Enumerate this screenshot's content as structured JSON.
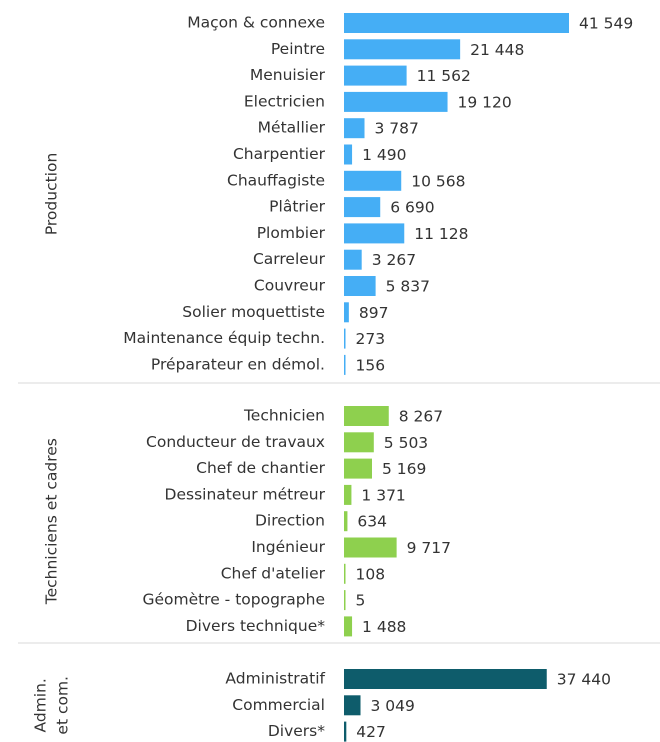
{
  "chart_data": {
    "type": "bar",
    "orientation": "horizontal",
    "groups": [
      {
        "name": [
          "Production"
        ],
        "color": "#45aef5",
        "categories": [
          "Maçon & connexe",
          "Peintre",
          "Menuisier",
          "Electricien",
          "Métallier",
          "Charpentier",
          "Chauffagiste",
          "Plâtrier",
          "Plombier",
          "Carreleur",
          "Couvreur",
          "Solier moquettiste",
          "Maintenance équip techn.",
          "Préparateur en démol."
        ],
        "values": [
          41549,
          21448,
          11562,
          19120,
          3787,
          1490,
          10568,
          6690,
          11128,
          3267,
          5837,
          897,
          273,
          156
        ],
        "value_labels": [
          "41 549",
          "21 448",
          "11 562",
          "19 120",
          "3 787",
          "1 490",
          "10 568",
          "6 690",
          "11 128",
          "3 267",
          "5 837",
          "897",
          "273",
          "156"
        ]
      },
      {
        "name": [
          "Techniciens et cadres"
        ],
        "color": "#8ed04e",
        "categories": [
          "Technicien",
          "Conducteur de travaux",
          "Chef de chantier",
          "Dessinateur métreur",
          "Direction",
          "Ingénieur",
          "Chef d'atelier",
          "Géomètre - topographe",
          "Divers technique*"
        ],
        "values": [
          8267,
          5503,
          5169,
          1371,
          634,
          9717,
          108,
          5,
          1488
        ],
        "value_labels": [
          "8 267",
          "5 503",
          "5 169",
          "1 371",
          "634",
          "9 717",
          "108",
          "5",
          "1 488"
        ]
      },
      {
        "name": [
          "Admin.",
          "et com."
        ],
        "color": "#0e5c6b",
        "categories": [
          "Administratif",
          "Commercial",
          "Divers*"
        ],
        "values": [
          37440,
          3049,
          427
        ],
        "value_labels": [
          "37 440",
          "3 049",
          "427"
        ]
      }
    ]
  }
}
